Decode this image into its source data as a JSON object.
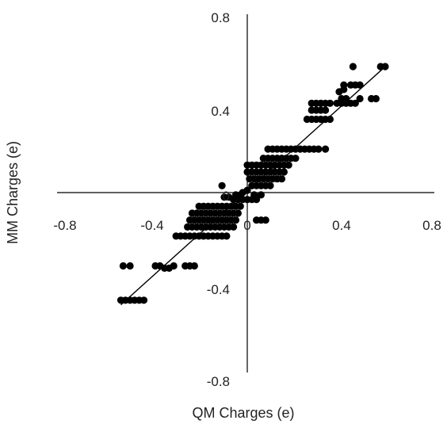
{
  "chart_data": {
    "type": "scatter",
    "title": "",
    "xlabel": "QM Charges (e)",
    "ylabel": "MM Charges (e)",
    "xlim": [
      -0.8,
      0.8
    ],
    "ylim": [
      -0.8,
      0.8
    ],
    "x_ticks": [
      "-0.8",
      "-0.4",
      "0",
      "0.4",
      "0.8"
    ],
    "y_ticks": [
      "0.8",
      "0.4",
      "0",
      "-0.4",
      "-0.8"
    ],
    "grid": false,
    "legend": "none",
    "colors": {
      "points": "#000000",
      "axes": "#000000",
      "trendline": "#000000"
    },
    "trendline": {
      "x": [
        -0.55,
        0.6
      ],
      "y": [
        -0.49,
        0.55
      ]
    },
    "series": [
      {
        "points": [
          [
            -0.54,
            -0.32
          ],
          [
            -0.51,
            -0.32
          ],
          [
            -0.55,
            -0.47
          ],
          [
            -0.53,
            -0.47
          ],
          [
            -0.51,
            -0.47
          ],
          [
            -0.49,
            -0.47
          ],
          [
            -0.47,
            -0.47
          ],
          [
            -0.45,
            -0.47
          ],
          [
            -0.4,
            -0.32
          ],
          [
            -0.38,
            -0.32
          ],
          [
            -0.36,
            -0.33
          ],
          [
            -0.34,
            -0.33
          ],
          [
            -0.32,
            -0.32
          ],
          [
            -0.27,
            -0.32
          ],
          [
            -0.25,
            -0.32
          ],
          [
            -0.23,
            -0.32
          ],
          [
            -0.31,
            -0.19
          ],
          [
            -0.29,
            -0.19
          ],
          [
            -0.27,
            -0.19
          ],
          [
            -0.25,
            -0.19
          ],
          [
            -0.23,
            -0.19
          ],
          [
            -0.21,
            -0.19
          ],
          [
            -0.19,
            -0.19
          ],
          [
            -0.17,
            -0.19
          ],
          [
            -0.15,
            -0.19
          ],
          [
            -0.13,
            -0.19
          ],
          [
            -0.11,
            -0.19
          ],
          [
            -0.09,
            -0.19
          ],
          [
            -0.26,
            -0.15
          ],
          [
            -0.24,
            -0.15
          ],
          [
            -0.22,
            -0.15
          ],
          [
            -0.2,
            -0.15
          ],
          [
            -0.18,
            -0.15
          ],
          [
            -0.16,
            -0.15
          ],
          [
            -0.14,
            -0.15
          ],
          [
            -0.12,
            -0.15
          ],
          [
            -0.1,
            -0.15
          ],
          [
            -0.08,
            -0.15
          ],
          [
            -0.06,
            -0.15
          ],
          [
            -0.25,
            -0.12
          ],
          [
            -0.23,
            -0.12
          ],
          [
            -0.21,
            -0.12
          ],
          [
            -0.19,
            -0.12
          ],
          [
            -0.17,
            -0.12
          ],
          [
            -0.15,
            -0.12
          ],
          [
            -0.13,
            -0.12
          ],
          [
            -0.11,
            -0.12
          ],
          [
            -0.09,
            -0.12
          ],
          [
            -0.07,
            -0.12
          ],
          [
            -0.05,
            -0.12
          ],
          [
            -0.24,
            -0.09
          ],
          [
            -0.22,
            -0.09
          ],
          [
            -0.2,
            -0.09
          ],
          [
            -0.18,
            -0.09
          ],
          [
            -0.16,
            -0.09
          ],
          [
            -0.14,
            -0.09
          ],
          [
            -0.12,
            -0.09
          ],
          [
            -0.1,
            -0.09
          ],
          [
            -0.08,
            -0.09
          ],
          [
            -0.06,
            -0.09
          ],
          [
            -0.04,
            -0.09
          ],
          [
            -0.21,
            -0.06
          ],
          [
            -0.19,
            -0.06
          ],
          [
            -0.17,
            -0.06
          ],
          [
            -0.15,
            -0.06
          ],
          [
            -0.13,
            -0.06
          ],
          [
            -0.11,
            -0.06
          ],
          [
            -0.09,
            -0.06
          ],
          [
            -0.07,
            -0.06
          ],
          [
            -0.05,
            -0.06
          ],
          [
            -0.03,
            -0.06
          ],
          [
            -0.06,
            -0.03
          ],
          [
            -0.04,
            -0.03
          ],
          [
            -0.02,
            -0.03
          ],
          [
            0.0,
            -0.03
          ],
          [
            0.02,
            -0.03
          ],
          [
            0.04,
            -0.03
          ],
          [
            -0.1,
            -0.02
          ],
          [
            -0.08,
            -0.02
          ],
          [
            -0.05,
            -0.01
          ],
          [
            -0.03,
            -0.01
          ],
          [
            0.03,
            -0.01
          ],
          [
            0.06,
            -0.01
          ],
          [
            -0.11,
            0.03
          ],
          [
            -0.02,
            0.0
          ],
          [
            0.0,
            0.01
          ],
          [
            0.02,
            0.03
          ],
          [
            0.04,
            0.03
          ],
          [
            0.06,
            0.03
          ],
          [
            0.08,
            0.03
          ],
          [
            0.1,
            0.03
          ],
          [
            0.01,
            0.06
          ],
          [
            0.03,
            0.06
          ],
          [
            0.05,
            0.06
          ],
          [
            0.07,
            0.06
          ],
          [
            0.09,
            0.06
          ],
          [
            0.11,
            0.06
          ],
          [
            0.13,
            0.06
          ],
          [
            0.15,
            0.06
          ],
          [
            0.0,
            0.09
          ],
          [
            0.02,
            0.09
          ],
          [
            0.04,
            0.09
          ],
          [
            0.06,
            0.09
          ],
          [
            0.08,
            0.09
          ],
          [
            0.1,
            0.09
          ],
          [
            0.12,
            0.09
          ],
          [
            0.14,
            0.09
          ],
          [
            0.16,
            0.09
          ],
          [
            0.0,
            0.12
          ],
          [
            0.02,
            0.12
          ],
          [
            0.04,
            0.12
          ],
          [
            0.06,
            0.12
          ],
          [
            0.08,
            0.12
          ],
          [
            0.1,
            0.12
          ],
          [
            0.12,
            0.12
          ],
          [
            0.14,
            0.12
          ],
          [
            0.16,
            0.12
          ],
          [
            0.18,
            0.12
          ],
          [
            0.07,
            0.15
          ],
          [
            0.09,
            0.15
          ],
          [
            0.11,
            0.15
          ],
          [
            0.13,
            0.15
          ],
          [
            0.15,
            0.15
          ],
          [
            0.17,
            0.15
          ],
          [
            0.19,
            0.15
          ],
          [
            0.21,
            0.15
          ],
          [
            0.09,
            0.19
          ],
          [
            0.11,
            0.19
          ],
          [
            0.13,
            0.19
          ],
          [
            0.15,
            0.19
          ],
          [
            0.17,
            0.19
          ],
          [
            0.19,
            0.19
          ],
          [
            0.21,
            0.19
          ],
          [
            0.23,
            0.19
          ],
          [
            0.25,
            0.19
          ],
          [
            0.27,
            0.19
          ],
          [
            0.29,
            0.19
          ],
          [
            0.04,
            -0.12
          ],
          [
            0.06,
            -0.12
          ],
          [
            0.08,
            -0.12
          ],
          [
            0.31,
            0.19
          ],
          [
            0.26,
            0.32
          ],
          [
            0.28,
            0.32
          ],
          [
            0.3,
            0.32
          ],
          [
            0.32,
            0.32
          ],
          [
            0.34,
            0.32
          ],
          [
            0.36,
            0.32
          ],
          [
            0.34,
            0.19
          ],
          [
            0.28,
            0.36
          ],
          [
            0.3,
            0.36
          ],
          [
            0.32,
            0.36
          ],
          [
            0.34,
            0.36
          ],
          [
            0.28,
            0.39
          ],
          [
            0.3,
            0.39
          ],
          [
            0.32,
            0.39
          ],
          [
            0.34,
            0.39
          ],
          [
            0.36,
            0.39
          ],
          [
            0.39,
            0.39
          ],
          [
            0.41,
            0.39
          ],
          [
            0.43,
            0.39
          ],
          [
            0.45,
            0.39
          ],
          [
            0.47,
            0.39
          ],
          [
            0.41,
            0.41
          ],
          [
            0.43,
            0.41
          ],
          [
            0.49,
            0.41
          ],
          [
            0.54,
            0.41
          ],
          [
            0.56,
            0.41
          ],
          [
            0.4,
            0.44
          ],
          [
            0.42,
            0.45
          ],
          [
            0.45,
            0.47
          ],
          [
            0.47,
            0.47
          ],
          [
            0.49,
            0.47
          ],
          [
            0.42,
            0.47
          ],
          [
            0.46,
            0.55
          ],
          [
            0.58,
            0.55
          ],
          [
            0.6,
            0.55
          ]
        ]
      }
    ]
  }
}
